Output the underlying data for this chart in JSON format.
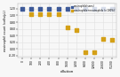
{
  "title": "",
  "xlabel": "dilution",
  "ylabel": "eosinophil count (cells/μL)",
  "legend": [
    "eosinophils(sens)",
    "eosinophils+neutrophils (>100%)"
  ],
  "legend_colors": [
    "#3d5a99",
    "#d4a017"
  ],
  "blue_x": [
    0,
    100,
    200,
    400,
    800,
    1600,
    3200,
    6400,
    12800,
    25600,
    51200
  ],
  "blue_y": [
    1.2,
    1.2,
    1.2,
    1.2,
    1.2,
    1.2,
    1.2,
    1.2,
    1.2,
    1.2,
    1.2
  ],
  "gold_x": [
    100,
    200,
    400,
    800,
    1600,
    3200,
    6400,
    12800,
    25600,
    51200
  ],
  "gold_y": [
    1.05,
    1.05,
    1.05,
    1.05,
    0.65,
    0.55,
    -0.1,
    -0.1,
    0.3,
    0.28
  ],
  "xlim_log": [
    0,
    51200
  ],
  "ylim": [
    -0.25,
    1.35
  ],
  "xtick_vals": [
    0,
    100,
    200,
    400,
    800,
    1600,
    3200,
    6400,
    12800,
    25600,
    51200
  ],
  "xtick_labels": [
    "0",
    "100",
    "200",
    "400",
    "800",
    "1600",
    "3200",
    "6400",
    "12800",
    "25600",
    "51200"
  ],
  "yticks": [
    -0.2,
    0.0,
    0.2,
    0.4,
    0.6,
    0.8,
    1.0,
    1.2
  ],
  "ytick_labels": [
    "-0.20",
    "0.00",
    "0.20",
    "0.40",
    "0.60",
    "0.80",
    "1.00",
    "1.20"
  ],
  "grid_color": "#e0e0e0",
  "background_color": "#f7f7f7",
  "marker_size": 5
}
